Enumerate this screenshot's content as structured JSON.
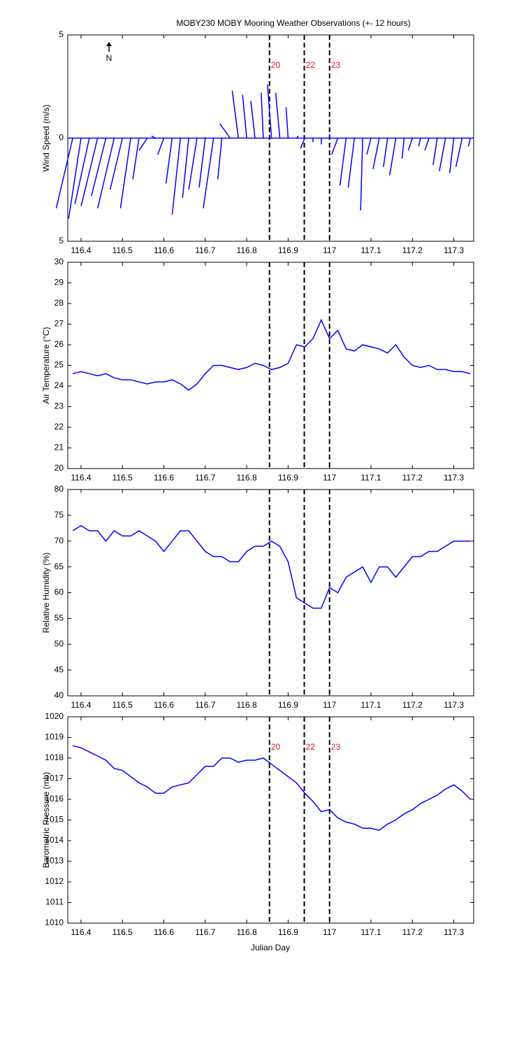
{
  "chart_data": {
    "title": "MOBY230 MOBY Mooring Weather Observations (+- 12 hours)",
    "xlabel": "Julian Day",
    "xlim": [
      116.368,
      117.348
    ],
    "xticks": [
      116.4,
      116.5,
      116.6,
      116.7,
      116.8,
      116.9,
      117,
      117.1,
      117.2,
      117.3
    ],
    "x": [
      116.38,
      116.4,
      116.42,
      116.44,
      116.46,
      116.48,
      116.5,
      116.52,
      116.54,
      116.56,
      116.58,
      116.6,
      116.62,
      116.64,
      116.66,
      116.68,
      116.7,
      116.72,
      116.74,
      116.76,
      116.78,
      116.8,
      116.82,
      116.84,
      116.86,
      116.88,
      116.9,
      116.92,
      116.94,
      116.96,
      116.98,
      117.0,
      117.02,
      117.04,
      117.06,
      117.08,
      117.1,
      117.12,
      117.14,
      117.16,
      117.18,
      117.2,
      117.22,
      117.24,
      117.26,
      117.28,
      117.3,
      117.32,
      117.34
    ],
    "markers": [
      {
        "x": 116.855,
        "label": "20"
      },
      {
        "x": 116.939,
        "label": "22"
      },
      {
        "x": 117.0,
        "label": "23"
      }
    ],
    "marker_color": "#cc2222",
    "panels": [
      {
        "type": "stick",
        "ylabel": "Wind Speed (m/s)",
        "north_label": "N",
        "color": "#0000ff",
        "marker_labels": true,
        "ylim": [
          -5,
          5
        ],
        "yticks": [
          {
            "value": -5,
            "label": "5"
          },
          0,
          5
        ],
        "v": [
          -3.4,
          -3.9,
          -3.2,
          -3.3,
          -2.8,
          -3.4,
          -2.5,
          -3.4,
          -2.0,
          -0.6,
          0.1,
          -0.8,
          -2.2,
          -3.7,
          -2.9,
          -2.5,
          -2.4,
          -3.4,
          -2.0,
          0.7,
          2.3,
          2.1,
          1.8,
          2.2,
          2.6,
          2.2,
          1.5,
          0.1,
          -0.5,
          -0.2,
          -0.3,
          0.2,
          -0.8,
          -2.3,
          -2.4,
          -3.5,
          -0.8,
          -1.5,
          -1.4,
          -1.8,
          -1.0,
          -0.6,
          -0.4,
          -0.6,
          -1.3,
          -1.6,
          -1.7,
          -1.4,
          -0.4
        ],
        "u": [
          -0.8,
          -0.6,
          -0.7,
          -0.8,
          -0.7,
          -0.8,
          -0.6,
          -0.5,
          -0.3,
          -0.4,
          -0.2,
          -0.3,
          -0.3,
          -0.4,
          -0.3,
          -0.4,
          -0.3,
          -0.5,
          -0.2,
          -0.5,
          -0.3,
          -0.2,
          -0.2,
          -0.1,
          -0.2,
          -0.2,
          -0.1,
          0.1,
          -0.2,
          0,
          0,
          0,
          -0.3,
          -0.3,
          -0.3,
          -0.1,
          -0.2,
          -0.3,
          -0.2,
          -0.3,
          -0.1,
          -0.2,
          -0.1,
          -0.2,
          -0.2,
          -0.3,
          -0.2,
          -0.3,
          -0.1
        ]
      },
      {
        "type": "line",
        "ylabel": "Air Temperature (°C)",
        "color": "#0000ff",
        "marker_labels": false,
        "ylim": [
          20,
          30
        ],
        "yticks": [
          20,
          21,
          22,
          23,
          24,
          25,
          26,
          27,
          28,
          29,
          30
        ],
        "values": [
          24.6,
          24.7,
          24.6,
          24.5,
          24.6,
          24.4,
          24.3,
          24.3,
          24.2,
          24.1,
          24.2,
          24.2,
          24.3,
          24.1,
          23.8,
          24.1,
          24.6,
          25.0,
          25.0,
          24.9,
          24.8,
          24.9,
          25.1,
          25.0,
          24.8,
          24.9,
          25.1,
          26.0,
          25.9,
          26.3,
          27.2,
          26.3,
          26.7,
          25.8,
          25.7,
          26.0,
          25.9,
          25.8,
          25.6,
          26.0,
          25.4,
          25.0,
          24.9,
          25.0,
          24.8,
          24.8,
          24.7,
          24.7,
          24.6
        ]
      },
      {
        "type": "line",
        "ylabel": "Relative Humidity (%)",
        "color": "#0000ff",
        "marker_labels": false,
        "ylim": [
          40,
          80
        ],
        "yticks": [
          40,
          45,
          50,
          55,
          60,
          65,
          70,
          75,
          80
        ],
        "values": [
          72,
          73,
          72,
          72,
          70,
          72,
          71,
          71,
          72,
          71,
          70,
          68,
          70,
          72,
          72,
          70,
          68,
          67,
          67,
          66,
          66,
          68,
          69,
          69,
          70,
          69,
          66,
          59,
          58,
          57,
          57,
          61,
          60,
          63,
          64,
          65,
          62,
          65,
          65,
          63,
          65,
          67,
          67,
          68,
          68,
          69,
          70,
          70,
          70
        ]
      },
      {
        "type": "line",
        "ylabel": "Barometric Pressure (mb)",
        "color": "#0000ff",
        "marker_labels": true,
        "ylim": [
          1010,
          1020
        ],
        "yticks": [
          1010,
          1011,
          1012,
          1013,
          1014,
          1015,
          1016,
          1017,
          1018,
          1019,
          1020
        ],
        "values": [
          1018.6,
          1018.5,
          1018.3,
          1018.1,
          1017.9,
          1017.5,
          1017.4,
          1017.1,
          1016.8,
          1016.6,
          1016.3,
          1016.3,
          1016.6,
          1016.7,
          1016.8,
          1017.2,
          1017.6,
          1017.6,
          1018.0,
          1018.0,
          1017.8,
          1017.9,
          1017.9,
          1018.0,
          1017.7,
          1017.4,
          1017.1,
          1016.8,
          1016.3,
          1015.9,
          1015.4,
          1015.5,
          1015.1,
          1014.9,
          1014.8,
          1014.6,
          1014.6,
          1014.5,
          1014.8,
          1015.0,
          1015.3,
          1015.5,
          1015.8,
          1016.0,
          1016.2,
          1016.5,
          1016.7,
          1016.4,
          1016.0
        ]
      }
    ]
  }
}
